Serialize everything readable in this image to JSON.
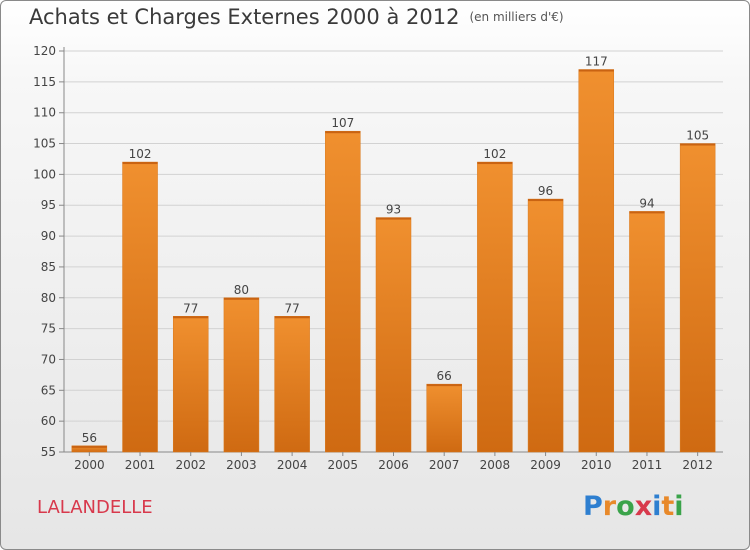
{
  "chart_data": {
    "type": "bar",
    "title": "Achats et Charges Externes 2000 à 2012",
    "subtitle": "(en milliers d'€)",
    "categories": [
      "2000",
      "2001",
      "2002",
      "2003",
      "2004",
      "2005",
      "2006",
      "2007",
      "2008",
      "2009",
      "2010",
      "2011",
      "2012"
    ],
    "values": [
      56,
      102,
      77,
      80,
      77,
      107,
      93,
      66,
      102,
      96,
      117,
      94,
      105
    ],
    "data_labels": [
      "56",
      "102",
      "77",
      "80",
      "77",
      "107",
      "93",
      "66",
      "102",
      "96",
      "117",
      "94",
      "105"
    ],
    "ylim": [
      55,
      120
    ],
    "yticks": [
      "55",
      "60",
      "65",
      "70",
      "75",
      "80",
      "85",
      "90",
      "95",
      "100",
      "105",
      "110",
      "115",
      "120"
    ],
    "grid": true,
    "bar_color": "#f0902f",
    "bar_color_dark": "#cf6a12"
  },
  "footer": {
    "commune": "LALANDELLE",
    "brand_letters": [
      "P",
      "r",
      "o",
      "x",
      "i",
      "t",
      "i"
    ],
    "brand_colors": [
      "#2e7fd0",
      "#e8892a",
      "#3aa34a",
      "#d8394c",
      "#2e7fd0",
      "#e8892a",
      "#3aa34a"
    ]
  }
}
